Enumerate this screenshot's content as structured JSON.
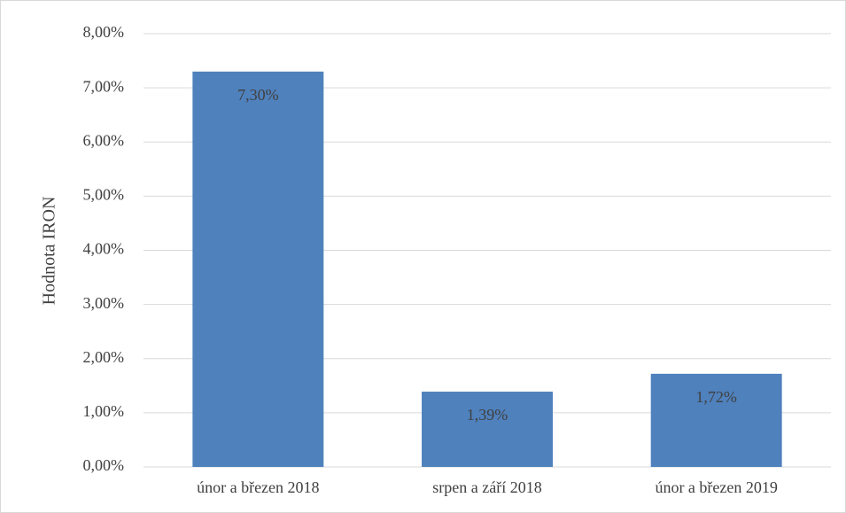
{
  "chart_data": {
    "type": "bar",
    "y_axis_label": "Hodnota IRON",
    "categories": [
      "únor a březen 2018",
      "srpen a září 2018",
      "únor a březen 2019"
    ],
    "values": [
      7.3,
      1.39,
      1.72
    ],
    "value_labels": [
      "7,30%",
      "1,39%",
      "1,72%"
    ],
    "color": "#4f81bd",
    "ylim": [
      0,
      8
    ],
    "yticks": [
      {
        "value": 0,
        "label": "0,00%"
      },
      {
        "value": 1,
        "label": "1,00%"
      },
      {
        "value": 2,
        "label": "2,00%"
      },
      {
        "value": 3,
        "label": "3,00%"
      },
      {
        "value": 4,
        "label": "4,00%"
      },
      {
        "value": 5,
        "label": "5,00%"
      },
      {
        "value": 6,
        "label": "6,00%"
      },
      {
        "value": 7,
        "label": "7,00%"
      },
      {
        "value": 8,
        "label": "8,00%"
      }
    ],
    "grid": true
  }
}
